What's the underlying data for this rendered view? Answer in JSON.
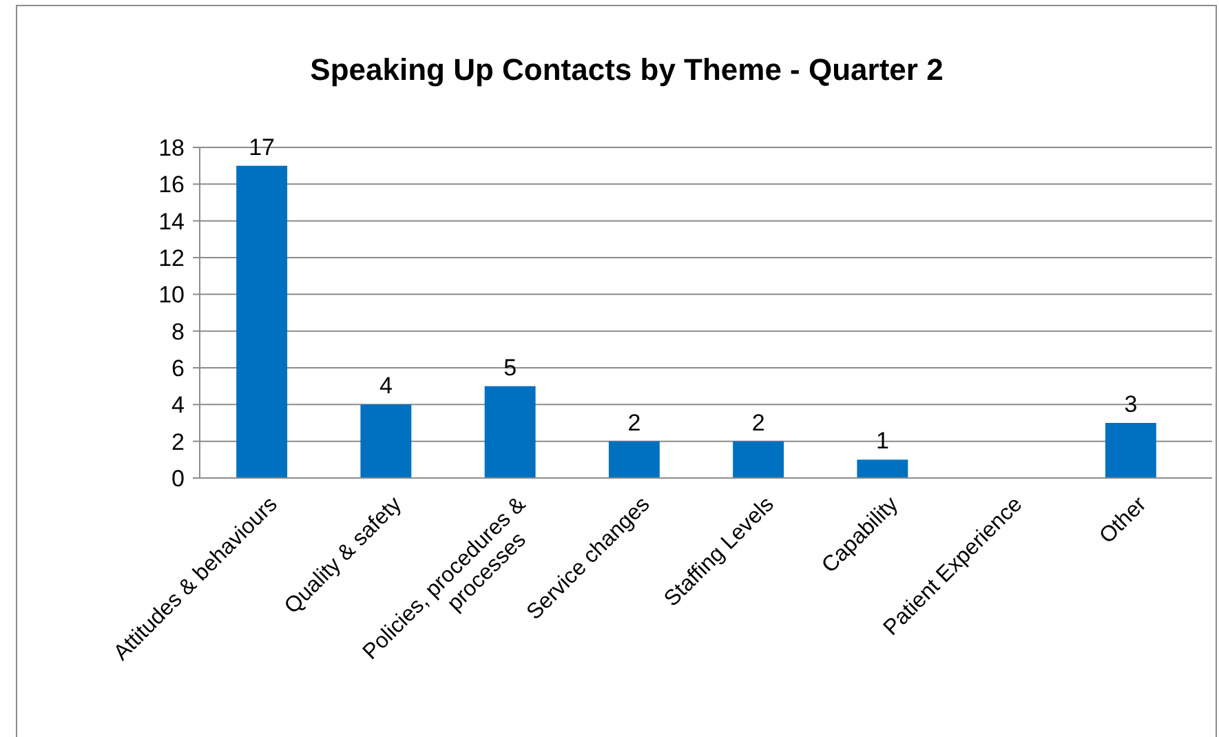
{
  "chart_data": {
    "type": "bar",
    "title": "Speaking Up Contacts by Theme - Quarter 2",
    "categories": [
      "Attitudes & behaviours",
      "Quality & safety",
      "Policies, procedures & processes",
      "Service changes",
      "Staffing Levels",
      "Capability",
      "Patient Experience",
      "Other"
    ],
    "values": [
      17,
      4,
      5,
      2,
      2,
      1,
      0,
      3
    ],
    "value_labels": [
      "17",
      "4",
      "5",
      "2",
      "2",
      "1",
      null,
      "3"
    ],
    "color": "#0070c0",
    "ylim": [
      0,
      18
    ],
    "yticks": [
      0,
      2,
      4,
      6,
      8,
      10,
      12,
      14,
      16,
      18
    ],
    "grid": "y"
  }
}
